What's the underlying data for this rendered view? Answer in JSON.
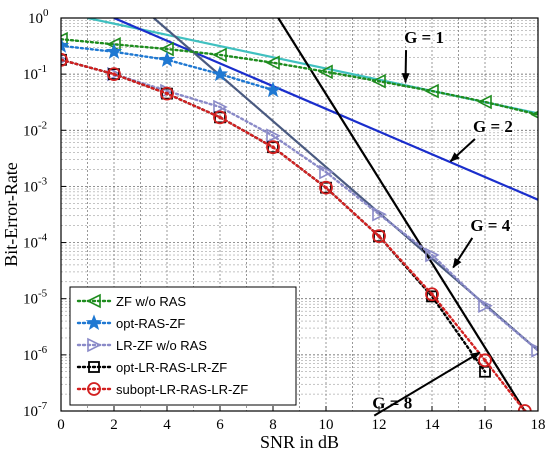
{
  "chart_data": {
    "type": "line",
    "xlabel": "SNR in dB",
    "ylabel": "Bit-Error-Rate",
    "xlim": [
      0,
      18
    ],
    "ylim": [
      1e-07,
      1
    ],
    "yscale": "log",
    "grid": true,
    "legend_position": "bottom-left",
    "x_ticks": [
      "0",
      "2",
      "4",
      "6",
      "8",
      "10",
      "12",
      "14",
      "16",
      "18"
    ],
    "y_ticks": [
      {
        "base": "10",
        "exp": "0"
      },
      {
        "base": "10",
        "exp": "-1"
      },
      {
        "base": "10",
        "exp": "-2"
      },
      {
        "base": "10",
        "exp": "-3"
      },
      {
        "base": "10",
        "exp": "-4"
      },
      {
        "base": "10",
        "exp": "-5"
      },
      {
        "base": "10",
        "exp": "-6"
      },
      {
        "base": "10",
        "exp": "-7"
      }
    ],
    "series": [
      {
        "name": "ZF w/o RAS",
        "color": "#1e8c1e",
        "marker": "triangle-left",
        "style": "dotted",
        "x": [
          0,
          2,
          4,
          6,
          8,
          10,
          12,
          14,
          16,
          18
        ],
        "y": [
          0.42,
          0.34,
          0.28,
          0.22,
          0.16,
          0.11,
          0.075,
          0.05,
          0.032,
          0.019
        ]
      },
      {
        "name": "opt-RAS-ZF",
        "color": "#1f78d2",
        "marker": "star",
        "style": "dotted",
        "x": [
          0,
          2,
          4,
          6,
          8
        ],
        "y": [
          0.32,
          0.25,
          0.18,
          0.1,
          0.052
        ]
      },
      {
        "name": "LR-ZF w/o RAS",
        "color": "#8a8ac8",
        "marker": "triangle-right",
        "style": "dotted",
        "x": [
          0,
          2,
          4,
          6,
          8,
          10,
          12,
          14,
          16,
          18
        ],
        "y": [
          0.18,
          0.1,
          0.05,
          0.026,
          0.008,
          0.0018,
          0.00032,
          6e-05,
          7.5e-06,
          1.2e-06
        ]
      },
      {
        "name": "opt-LR-RAS-LR-ZF",
        "color": "#000000",
        "marker": "square",
        "style": "dotted",
        "x": [
          0,
          2,
          4,
          6,
          8,
          10,
          12,
          14,
          16
        ],
        "y": [
          0.18,
          0.1,
          0.045,
          0.017,
          0.005,
          0.00095,
          0.00013,
          1.1e-05,
          5e-07
        ]
      },
      {
        "name": "subopt-LR-RAS-LR-ZF",
        "color": "#d22020",
        "marker": "circle",
        "style": "dotted",
        "x": [
          0,
          2,
          4,
          6,
          8,
          10,
          12,
          14,
          16,
          17.5
        ],
        "y": [
          0.18,
          0.1,
          0.045,
          0.017,
          0.005,
          0.00095,
          0.00013,
          1.2e-05,
          8e-07,
          1e-07
        ]
      }
    ],
    "reference_lines": [
      {
        "label": "G = 1",
        "color": "#40c0c0",
        "x": [
          1,
          18
        ],
        "y": [
          1,
          0.02
        ]
      },
      {
        "label": "G = 2",
        "color": "#1a2ecc",
        "x": [
          2,
          18
        ],
        "y": [
          1,
          0.00058
        ]
      },
      {
        "label": "G = 4",
        "color": "#4a5a80",
        "x": [
          3.5,
          18
        ],
        "y": [
          1,
          1.2e-06
        ]
      },
      {
        "label": "G = 8",
        "color": "#000000",
        "x": [
          8.2,
          17.5
        ],
        "y": [
          1,
          1e-07
        ]
      }
    ],
    "annotations": [
      {
        "text": "G = 1",
        "tx": 13.7,
        "ty": 0.42,
        "ax": 13.0,
        "ay": 0.072
      },
      {
        "text": "G = 2",
        "tx": 16.3,
        "ty": 0.011,
        "ax": 14.7,
        "ay": 0.0028
      },
      {
        "text": "G = 4",
        "tx": 16.2,
        "ty": 0.00019,
        "ax": 14.8,
        "ay": 3.6e-05
      },
      {
        "text": "G = 8",
        "tx": 12.5,
        "ty": 1.3e-07,
        "ax": 15.8,
        "ay": 1.1e-06
      }
    ]
  }
}
